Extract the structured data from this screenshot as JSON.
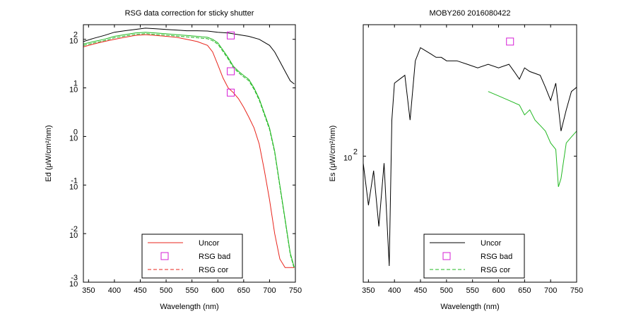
{
  "colors": {
    "red": "#e8251c",
    "green": "#22b822",
    "black": "#000000",
    "magenta": "#d61fd6"
  },
  "chart_data": [
    {
      "type": "line",
      "title": "RSG data correction for sticky shutter",
      "xlabel": "Wavelength (nm)",
      "ylabel": "Ed (μW/cm²/nm)",
      "xlim": [
        340,
        750
      ],
      "ylim": [
        0.001,
        200
      ],
      "y_scale": "log",
      "xticks": [
        350,
        400,
        450,
        500,
        550,
        600,
        650,
        700,
        750
      ],
      "ytick_exponents": [
        "2",
        "1",
        "0",
        "-1",
        "-2",
        "-3"
      ],
      "ytick_base": "10",
      "grid": false,
      "legend": {
        "placement": "bottom-center",
        "entries": [
          {
            "label": "Uncor",
            "style": "solid",
            "color": "#e8251c"
          },
          {
            "label": "RSG bad",
            "style": "square",
            "color": "#d61fd6"
          },
          {
            "label": "RSG cor",
            "style": "dashed",
            "color": "#e8251c"
          }
        ]
      },
      "series": [
        {
          "color": "#000000",
          "x": [
            340,
            360,
            380,
            400,
            420,
            440,
            460,
            480,
            500,
            520,
            540,
            560,
            580,
            600,
            620,
            640,
            660,
            680,
            700,
            710,
            720,
            730,
            740,
            748
          ],
          "y": [
            90,
            105,
            120,
            140,
            150,
            160,
            170,
            165,
            160,
            155,
            150,
            150,
            148,
            140,
            135,
            125,
            115,
            100,
            75,
            55,
            35,
            22,
            14,
            12
          ]
        },
        {
          "color": "#22b822",
          "x": [
            340,
            360,
            380,
            400,
            420,
            440,
            460,
            480,
            500,
            520,
            540,
            560,
            570,
            580,
            590,
            600,
            610,
            620,
            630,
            640,
            650,
            660,
            670,
            680,
            690,
            700,
            710,
            720,
            730,
            740,
            748
          ],
          "y": [
            80,
            90,
            100,
            115,
            125,
            135,
            140,
            135,
            130,
            125,
            120,
            115,
            112,
            110,
            100,
            85,
            60,
            42,
            28,
            22,
            18,
            15,
            10,
            6,
            3,
            1.5,
            0.5,
            0.1,
            0.02,
            0.004,
            0.002
          ],
          "dashed": [
            340,
            360,
            380,
            400,
            420,
            440,
            460,
            480,
            500,
            520,
            540,
            560,
            570,
            580,
            590,
            600,
            610,
            620,
            630,
            640,
            650,
            660,
            670,
            680,
            690,
            700,
            710,
            720,
            730,
            740,
            748
          ]
        },
        {
          "color": "#e8251c",
          "x": [
            340,
            360,
            380,
            400,
            420,
            440,
            460,
            480,
            500,
            520,
            540,
            560,
            580,
            590,
            600,
            610,
            620,
            630,
            640,
            650,
            660,
            670,
            680,
            690,
            700,
            710,
            720,
            730,
            740,
            748
          ],
          "y": [
            70,
            80,
            90,
            100,
            110,
            120,
            125,
            120,
            115,
            110,
            100,
            90,
            75,
            55,
            30,
            16,
            10,
            8,
            6,
            4,
            2.5,
            1.5,
            0.7,
            0.2,
            0.05,
            0.01,
            0.003,
            0.002,
            0.002,
            0.002
          ]
        }
      ],
      "markers": [
        {
          "x": 625,
          "y": 120
        },
        {
          "x": 625,
          "y": 22
        },
        {
          "x": 625,
          "y": 8
        }
      ]
    },
    {
      "type": "line",
      "title": "MOBY260  2016080422",
      "xlabel": "Wavelength (nm)",
      "ylabel": "Es (μW/cm²/nm)",
      "xlim": [
        340,
        750
      ],
      "y_scale": "log",
      "xticks": [
        350,
        400,
        450,
        500,
        550,
        600,
        650,
        700,
        750
      ],
      "ytick_label_base": "10",
      "ytick_label_exp": "2",
      "grid": false,
      "legend": {
        "placement": "bottom-center",
        "entries": [
          {
            "label": "Uncor",
            "style": "solid",
            "color": "#000000"
          },
          {
            "label": "RSG bad",
            "style": "square",
            "color": "#d61fd6"
          },
          {
            "label": "RSG cor",
            "style": "dashed",
            "color": "#22b822"
          }
        ]
      },
      "series": [
        {
          "color": "#000000",
          "x": [
            340,
            350,
            360,
            370,
            380,
            390,
            395,
            400,
            410,
            420,
            430,
            440,
            450,
            460,
            470,
            480,
            490,
            500,
            520,
            540,
            560,
            580,
            600,
            620,
            630,
            640,
            650,
            660,
            680,
            690,
            700,
            710,
            720,
            730,
            740,
            750
          ],
          "y": [
            95,
            70,
            90,
            60,
            95,
            45,
            130,
            170,
            175,
            180,
            130,
            200,
            220,
            215,
            210,
            205,
            205,
            200,
            200,
            195,
            190,
            195,
            190,
            195,
            185,
            175,
            190,
            185,
            180,
            165,
            150,
            170,
            120,
            140,
            160,
            165
          ]
        },
        {
          "color": "#22b822",
          "x": [
            580,
            600,
            620,
            640,
            650,
            660,
            670,
            680,
            690,
            700,
            710,
            715,
            720,
            730,
            740,
            750
          ],
          "y": [
            160,
            155,
            150,
            145,
            135,
            140,
            130,
            125,
            120,
            110,
            105,
            80,
            85,
            110,
            115,
            120
          ]
        }
      ],
      "markers": [
        {
          "x": 622,
          "y": 230
        }
      ]
    }
  ]
}
